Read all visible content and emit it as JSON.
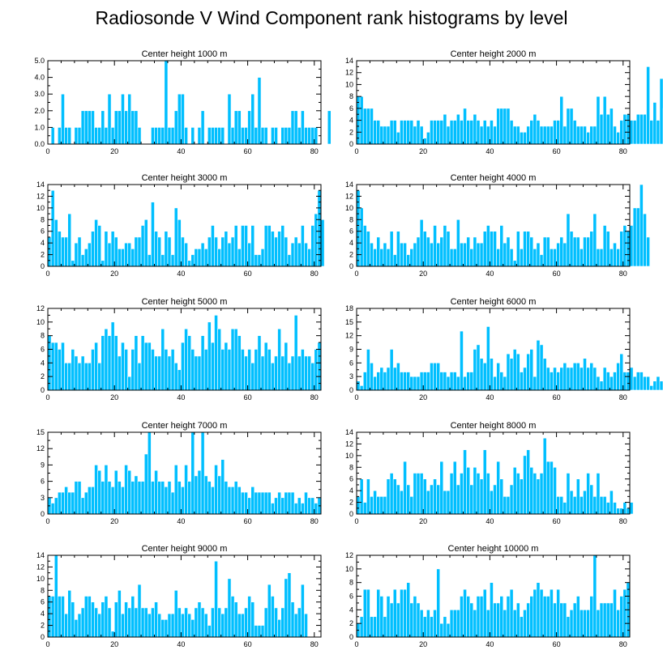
{
  "figure_title": "Radiosonde V Wind Component rank histograms by level",
  "bar_color": "#00bfff",
  "chart_data": [
    {
      "type": "bar",
      "title": "Center height 1000 m",
      "xlim": [
        0,
        82
      ],
      "xticks": [
        0,
        20,
        40,
        60,
        80
      ],
      "ylim": [
        0,
        5
      ],
      "yticks": [
        0,
        1,
        2,
        3,
        4,
        5
      ],
      "ytick_labels": [
        "0.0",
        "1.0",
        "2.0",
        "3.0",
        "4.0",
        "5.0"
      ],
      "values": [
        0,
        1,
        0,
        1,
        3,
        1,
        1,
        0,
        1,
        1,
        2,
        2,
        2,
        2,
        1,
        1,
        2,
        1,
        3,
        1,
        2,
        2,
        3,
        2,
        3,
        2,
        2,
        1,
        0,
        0,
        0,
        1,
        1,
        1,
        1,
        5,
        1,
        1,
        2,
        3,
        3,
        1,
        0,
        1,
        0,
        1,
        2,
        0,
        1,
        1,
        1,
        1,
        1,
        0,
        3,
        1,
        2,
        2,
        1,
        1,
        2,
        3,
        1,
        4,
        1,
        1,
        0,
        1,
        1,
        0,
        1,
        1,
        1,
        2,
        2,
        1,
        2,
        1,
        1,
        1,
        1,
        0,
        0,
        0,
        2,
        0
      ]
    },
    {
      "type": "bar",
      "title": "Center height 2000 m",
      "xlim": [
        0,
        82
      ],
      "xticks": [
        0,
        20,
        40,
        60,
        80
      ],
      "ylim": [
        0,
        14
      ],
      "yticks": [
        0,
        2,
        4,
        6,
        8,
        10,
        12,
        14
      ],
      "ytick_labels": [
        "0",
        "2",
        "4",
        "6",
        "8",
        "10",
        "12",
        "14"
      ],
      "values": [
        8,
        8,
        6,
        6,
        6,
        4,
        4,
        3,
        3,
        3,
        4,
        4,
        2,
        4,
        4,
        4,
        4,
        3,
        4,
        3,
        1,
        2,
        4,
        4,
        4,
        4,
        5,
        3,
        4,
        4,
        5,
        4,
        6,
        4,
        4,
        5,
        4,
        3,
        4,
        3,
        4,
        3,
        6,
        6,
        6,
        6,
        4,
        3,
        3,
        2,
        2,
        3,
        4,
        5,
        4,
        3,
        3,
        3,
        3,
        4,
        4,
        8,
        3,
        6,
        6,
        4,
        3,
        3,
        3,
        2,
        3,
        3,
        8,
        5,
        8,
        5,
        6,
        3,
        2,
        4,
        5,
        5,
        4,
        4,
        5,
        5,
        5,
        13,
        4,
        7,
        4,
        11,
        6,
        7,
        9
      ]
    },
    {
      "type": "bar",
      "title": "Center height 3000 m",
      "xlim": [
        0,
        82
      ],
      "xticks": [
        0,
        20,
        40,
        60,
        80
      ],
      "ylim": [
        0,
        14
      ],
      "yticks": [
        0,
        2,
        4,
        6,
        8,
        10,
        12,
        14
      ],
      "ytick_labels": [
        "0",
        "2",
        "4",
        "6",
        "8",
        "10",
        "12",
        "14"
      ],
      "values": [
        5,
        13,
        8,
        6,
        5,
        5,
        9,
        1,
        4,
        5,
        2,
        3,
        4,
        6,
        8,
        7,
        1,
        6,
        4,
        6,
        5,
        3,
        3,
        4,
        4,
        3,
        5,
        5,
        7,
        8,
        2,
        11,
        6,
        5,
        2,
        6,
        5,
        2,
        10,
        8,
        5,
        4,
        1,
        2,
        3,
        3,
        4,
        3,
        5,
        7,
        5,
        3,
        5,
        6,
        4,
        5,
        7,
        3,
        7,
        7,
        4,
        7,
        2,
        2,
        3,
        7,
        7,
        6,
        5,
        6,
        7,
        5,
        2,
        4,
        5,
        4,
        7,
        4,
        3,
        7,
        9,
        13,
        8
      ]
    },
    {
      "type": "bar",
      "title": "Center height 4000 m",
      "xlim": [
        0,
        82
      ],
      "xticks": [
        0,
        20,
        40,
        60,
        80
      ],
      "ylim": [
        0,
        14
      ],
      "yticks": [
        0,
        2,
        4,
        6,
        8,
        10,
        12,
        14
      ],
      "ytick_labels": [
        "0",
        "2",
        "4",
        "6",
        "8",
        "10",
        "12",
        "14"
      ],
      "values": [
        13,
        10,
        7,
        6,
        4,
        3,
        5,
        3,
        4,
        3,
        6,
        2,
        6,
        4,
        4,
        2,
        3,
        4,
        5,
        8,
        6,
        5,
        4,
        7,
        4,
        5,
        7,
        6,
        3,
        3,
        8,
        4,
        4,
        5,
        3,
        5,
        4,
        4,
        6,
        7,
        6,
        6,
        3,
        7,
        4,
        5,
        3,
        1,
        6,
        3,
        6,
        6,
        5,
        3,
        4,
        2,
        5,
        5,
        3,
        3,
        4,
        5,
        4,
        9,
        6,
        5,
        5,
        3,
        5,
        5,
        6,
        9,
        3,
        3,
        7,
        6,
        3,
        4,
        3,
        6,
        7,
        6,
        7,
        10,
        10,
        14,
        9,
        5
      ]
    },
    {
      "type": "bar",
      "title": "Center height 5000 m",
      "xlim": [
        0,
        82
      ],
      "xticks": [
        0,
        20,
        40,
        60,
        80
      ],
      "ylim": [
        0,
        12
      ],
      "yticks": [
        0,
        2,
        4,
        6,
        8,
        10,
        12
      ],
      "ytick_labels": [
        "0",
        "2",
        "4",
        "6",
        "8",
        "10",
        "12"
      ],
      "values": [
        8,
        7,
        7,
        6,
        7,
        4,
        4,
        6,
        5,
        4,
        5,
        4,
        4,
        6,
        7,
        4,
        8,
        9,
        8,
        10,
        8,
        5,
        7,
        6,
        2,
        6,
        8,
        4,
        8,
        7,
        7,
        6,
        5,
        5,
        9,
        6,
        5,
        6,
        4,
        3,
        7,
        9,
        8,
        6,
        5,
        5,
        8,
        6,
        10,
        7,
        11,
        9,
        6,
        7,
        6,
        9,
        9,
        8,
        6,
        5,
        6,
        4,
        6,
        8,
        5,
        7,
        6,
        4,
        5,
        9,
        5,
        7,
        4,
        5,
        11,
        5,
        6,
        5,
        5,
        4,
        6,
        7
      ]
    },
    {
      "type": "bar",
      "title": "Center height 6000 m",
      "xlim": [
        0,
        82
      ],
      "xticks": [
        0,
        20,
        40,
        60,
        80
      ],
      "ylim": [
        0,
        18
      ],
      "yticks": [
        0,
        3,
        6,
        9,
        12,
        15,
        18
      ],
      "ytick_labels": [
        "0",
        "3",
        "6",
        "9",
        "12",
        "15",
        "18"
      ],
      "values": [
        2,
        1,
        4,
        9,
        6,
        3,
        4,
        5,
        4,
        5,
        9,
        5,
        6,
        4,
        4,
        4,
        3,
        3,
        3,
        4,
        4,
        4,
        6,
        6,
        6,
        4,
        4,
        3,
        4,
        4,
        3,
        13,
        3,
        4,
        4,
        9,
        10,
        7,
        6,
        14,
        7,
        3,
        6,
        4,
        3,
        8,
        7,
        9,
        8,
        4,
        5,
        8,
        9,
        3,
        11,
        10,
        7,
        5,
        4,
        5,
        4,
        5,
        6,
        5,
        5,
        6,
        6,
        5,
        7,
        5,
        6,
        5,
        3,
        2,
        5,
        4,
        3,
        4,
        6,
        8,
        4,
        4,
        5,
        3,
        4,
        4,
        3,
        3,
        1,
        2,
        3,
        2,
        3,
        2,
        3,
        4,
        3
      ]
    },
    {
      "type": "bar",
      "title": "Center height 7000 m",
      "xlim": [
        0,
        82
      ],
      "xticks": [
        0,
        20,
        40,
        60,
        80
      ],
      "ylim": [
        0,
        15
      ],
      "yticks": [
        0,
        3,
        6,
        9,
        12,
        15
      ],
      "ytick_labels": [
        "0",
        "3",
        "6",
        "9",
        "12",
        "15"
      ],
      "values": [
        3,
        2,
        3,
        4,
        4,
        5,
        4,
        4,
        6,
        6,
        3,
        4,
        5,
        5,
        9,
        8,
        6,
        9,
        6,
        5,
        8,
        6,
        5,
        9,
        8,
        6,
        7,
        6,
        6,
        11,
        15,
        6,
        8,
        6,
        6,
        5,
        6,
        4,
        9,
        6,
        5,
        9,
        6,
        15,
        7,
        8,
        15,
        7,
        6,
        5,
        9,
        7,
        10,
        6,
        5,
        5,
        6,
        5,
        4,
        4,
        3,
        5,
        4,
        4,
        4,
        4,
        4,
        2,
        3,
        4,
        3,
        4,
        4,
        4,
        2,
        3,
        2,
        4,
        3,
        3,
        2,
        3
      ]
    },
    {
      "type": "bar",
      "title": "Center height 8000 m",
      "xlim": [
        0,
        82
      ],
      "xticks": [
        0,
        20,
        40,
        60,
        80
      ],
      "ylim": [
        0,
        14
      ],
      "yticks": [
        0,
        2,
        4,
        6,
        8,
        10,
        12,
        14
      ],
      "ytick_labels": [
        "0",
        "2",
        "4",
        "6",
        "8",
        "10",
        "12",
        "14"
      ],
      "values": [
        3,
        6,
        2,
        6,
        3,
        4,
        3,
        3,
        3,
        6,
        7,
        6,
        5,
        4,
        9,
        5,
        3,
        7,
        7,
        7,
        6,
        4,
        5,
        6,
        5,
        9,
        4,
        4,
        7,
        9,
        5,
        7,
        11,
        8,
        5,
        8,
        7,
        6,
        11,
        7,
        4,
        5,
        9,
        6,
        3,
        3,
        5,
        8,
        7,
        6,
        10,
        11,
        8,
        7,
        6,
        7,
        13,
        9,
        9,
        8,
        3,
        3,
        2,
        7,
        4,
        3,
        6,
        3,
        4,
        7,
        5,
        3,
        7,
        3,
        3,
        2,
        4,
        2,
        1,
        1,
        2,
        1,
        2
      ]
    },
    {
      "type": "bar",
      "title": "Center height 9000 m",
      "xlim": [
        0,
        82
      ],
      "xticks": [
        0,
        20,
        40,
        60,
        80
      ],
      "ylim": [
        0,
        14
      ],
      "yticks": [
        0,
        2,
        4,
        6,
        8,
        10,
        12,
        14
      ],
      "ytick_labels": [
        "0",
        "2",
        "4",
        "6",
        "8",
        "10",
        "12",
        "14"
      ],
      "values": [
        7,
        7,
        14,
        7,
        7,
        4,
        8,
        6,
        3,
        4,
        5,
        7,
        7,
        6,
        5,
        4,
        6,
        7,
        5,
        1,
        6,
        8,
        4,
        6,
        5,
        7,
        5,
        9,
        5,
        5,
        4,
        5,
        6,
        4,
        3,
        3,
        4,
        4,
        8,
        5,
        4,
        5,
        4,
        3,
        5,
        6,
        5,
        4,
        2,
        5,
        13,
        5,
        4,
        5,
        10,
        7,
        6,
        4,
        4,
        5,
        7,
        6,
        2,
        2,
        2,
        5,
        9,
        7,
        5,
        3,
        5,
        10,
        11,
        6,
        4,
        5,
        9,
        4
      ]
    },
    {
      "type": "bar",
      "title": "Center height 10000 m",
      "xlim": [
        0,
        82
      ],
      "xticks": [
        0,
        20,
        40,
        60,
        80
      ],
      "ylim": [
        0,
        12
      ],
      "yticks": [
        0,
        2,
        4,
        6,
        8,
        10,
        12
      ],
      "ytick_labels": [
        "0",
        "2",
        "4",
        "6",
        "8",
        "10",
        "12"
      ],
      "values": [
        2,
        3,
        7,
        7,
        3,
        3,
        7,
        6,
        3,
        6,
        5,
        7,
        5,
        7,
        7,
        8,
        5,
        6,
        5,
        4,
        3,
        4,
        3,
        4,
        10,
        2,
        3,
        2,
        4,
        4,
        4,
        6,
        7,
        6,
        5,
        4,
        6,
        6,
        7,
        4,
        8,
        5,
        5,
        6,
        4,
        6,
        7,
        4,
        5,
        3,
        4,
        5,
        6,
        7,
        8,
        7,
        6,
        6,
        7,
        5,
        7,
        5,
        5,
        3,
        4,
        5,
        6,
        4,
        4,
        4,
        6,
        12,
        4,
        5,
        5,
        5,
        5,
        7,
        4,
        6,
        7,
        8
      ]
    }
  ]
}
